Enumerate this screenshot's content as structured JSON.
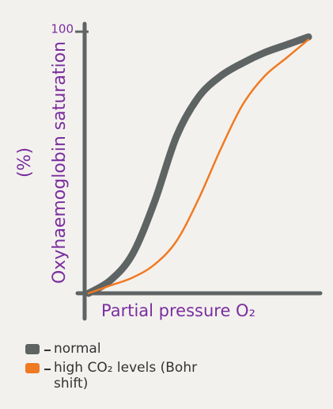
{
  "chart_data": {
    "type": "line",
    "y_label": "Oxyhaemoglobin saturation",
    "y_unit": "(%)",
    "x_label": "Partial pressure O₂",
    "x": [
      0,
      10,
      20,
      30,
      40,
      50,
      60,
      70,
      80,
      90,
      100
    ],
    "series": [
      {
        "name": "normal",
        "color": "#5d6463",
        "values": [
          0,
          5,
          15,
          35,
          60,
          75,
          83,
          88,
          92,
          95,
          98
        ]
      },
      {
        "name": "high CO₂ levels (Bohr shift)",
        "color": "#f07a22",
        "values": [
          0,
          3,
          6,
          11,
          20,
          36,
          55,
          72,
          83,
          90,
          97
        ]
      }
    ],
    "xlim": [
      0,
      100
    ],
    "ylim": [
      0,
      100
    ],
    "yticks": [
      100
    ]
  }
}
